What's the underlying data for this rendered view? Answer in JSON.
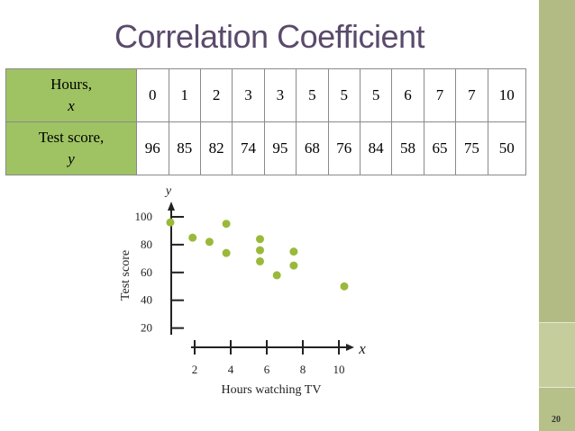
{
  "slide": {
    "title": "Correlation Coefficient",
    "page_number": "20"
  },
  "table": {
    "row1_header": {
      "label": "Hours,",
      "var": "x"
    },
    "row2_header": {
      "label": "Test score,",
      "var": "y"
    },
    "hours": [
      "0",
      "1",
      "2",
      "3",
      "3",
      "5",
      "5",
      "5",
      "6",
      "7",
      "7",
      "10"
    ],
    "scores": [
      "96",
      "85",
      "82",
      "74",
      "95",
      "68",
      "76",
      "84",
      "58",
      "65",
      "75",
      "50"
    ]
  },
  "chart_data": {
    "type": "scatter",
    "xlabel": "Hours watching TV",
    "ylabel": "Test score",
    "x_axis_var": "x",
    "y_axis_var": "y",
    "xlim": [
      0,
      10
    ],
    "ylim": [
      20,
      100
    ],
    "x_ticks": [
      "2",
      "4",
      "6",
      "8",
      "10"
    ],
    "y_ticks": [
      "20",
      "40",
      "60",
      "80",
      "100"
    ],
    "points": [
      {
        "x": 0,
        "y": 96
      },
      {
        "x": 1,
        "y": 85
      },
      {
        "x": 2,
        "y": 82
      },
      {
        "x": 3,
        "y": 74
      },
      {
        "x": 3,
        "y": 95
      },
      {
        "x": 5,
        "y": 68
      },
      {
        "x": 5,
        "y": 76
      },
      {
        "x": 5,
        "y": 84
      },
      {
        "x": 6,
        "y": 58
      },
      {
        "x": 7,
        "y": 65
      },
      {
        "x": 7,
        "y": 75
      },
      {
        "x": 10,
        "y": 50
      }
    ],
    "point_color": "#9ab93a",
    "grid": false
  },
  "colors": {
    "title": "#5a4a6b",
    "table_header_bg": "#9fc363",
    "side_strip": "#b6c089"
  }
}
